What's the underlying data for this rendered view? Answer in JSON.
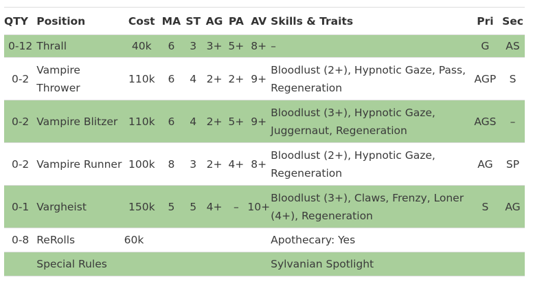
{
  "headers": {
    "qty": "QTY",
    "position": "Position",
    "cost": "Cost",
    "ma": "MA",
    "st": "ST",
    "ag": "AG",
    "pa": "PA",
    "av": "AV",
    "skills": "Skills & Traits",
    "pri": "Pri",
    "sec": "Sec"
  },
  "rows": [
    {
      "qty": "0-12",
      "position": "Thrall",
      "cost": "40k",
      "ma": "6",
      "st": "3",
      "ag": "3+",
      "pa": "5+",
      "av": "8+",
      "skills": "–",
      "pri": "G",
      "sec": "AS"
    },
    {
      "qty": "0-2",
      "position": "Vampire Thrower",
      "cost": "110k",
      "ma": "6",
      "st": "4",
      "ag": "2+",
      "pa": "2+",
      "av": "9+",
      "skills": "Bloodlust (2+), Hypnotic Gaze, Pass, Regeneration",
      "pri": "AGP",
      "sec": "S"
    },
    {
      "qty": "0-2",
      "position": "Vampire Blitzer",
      "cost": "110k",
      "ma": "6",
      "st": "4",
      "ag": "2+",
      "pa": "5+",
      "av": "9+",
      "skills": "Bloodlust (3+), Hypnotic Gaze, Juggernaut, Regeneration",
      "pri": "AGS",
      "sec": "–"
    },
    {
      "qty": "0-2",
      "position": "Vampire Runner",
      "cost": "100k",
      "ma": "8",
      "st": "3",
      "ag": "2+",
      "pa": "4+",
      "av": "8+",
      "skills": "Bloodlust (2+), Hypnotic Gaze, Regeneration",
      "pri": "AG",
      "sec": "SP"
    },
    {
      "qty": "0-1",
      "position": "Vargheist",
      "cost": "150k",
      "ma": "5",
      "st": "5",
      "ag": "4+",
      "pa": "–",
      "av": "10+",
      "skills": "Bloodlust (3+), Claws, Frenzy, Loner (4+), Regeneration",
      "pri": "S",
      "sec": "AG"
    }
  ],
  "rerolls": {
    "qty": "0-8",
    "position": "ReRolls",
    "cost": "60k",
    "skills": "Apothecary: Yes"
  },
  "special": {
    "position": "Special Rules",
    "skills": "Sylvanian Spotlight"
  }
}
